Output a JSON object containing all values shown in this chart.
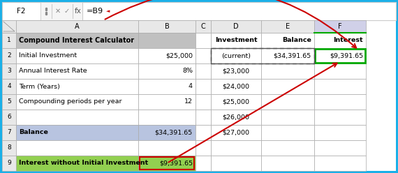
{
  "formula_bar_cell": "F2",
  "formula_bar_value": "=B9",
  "col_headers": [
    "A",
    "B",
    "C",
    "D",
    "E",
    "F"
  ],
  "cells": {
    "A1": "Compound Interest Calculator",
    "A2": "Initial Investment",
    "B2": "$25,000",
    "A3": "Annual Interest Rate",
    "B3": "8%",
    "A4": "Term (Years)",
    "B4": "4",
    "A5": "Compounding periods per year",
    "B5": "12",
    "A7": "Balance",
    "B7": "$34,391.65",
    "A9": "Interest without Initial Investment",
    "B9": "$9,391.65",
    "D1": "Investment",
    "E1": "Balance",
    "F1": "Interest",
    "D2": "(current)",
    "E2": "$34,391.65",
    "F2": "$9,391.65",
    "D3": "$23,000",
    "D4": "$24,000",
    "D5": "$25,000",
    "D6": "$26,000",
    "D7": "$27,000"
  },
  "row1_color": "#c0c0c0",
  "row7_color": "#b8c4e0",
  "row9_color": "#92d050",
  "col_header_color": "#e8e8e8",
  "F_header_color": "#d0d0e8",
  "outer_border_color": "#1ab0e8",
  "bg_color": "#f2f2f2",
  "F2_border_color": "#00aa00",
  "B9_border_color": "#cc0000",
  "arrow_color": "#cc0000",
  "dashed_color": "#555555",
  "formula_bg": "#f5f5f5",
  "cell_white": "#ffffff",
  "grid_color": "#c0c0c0"
}
